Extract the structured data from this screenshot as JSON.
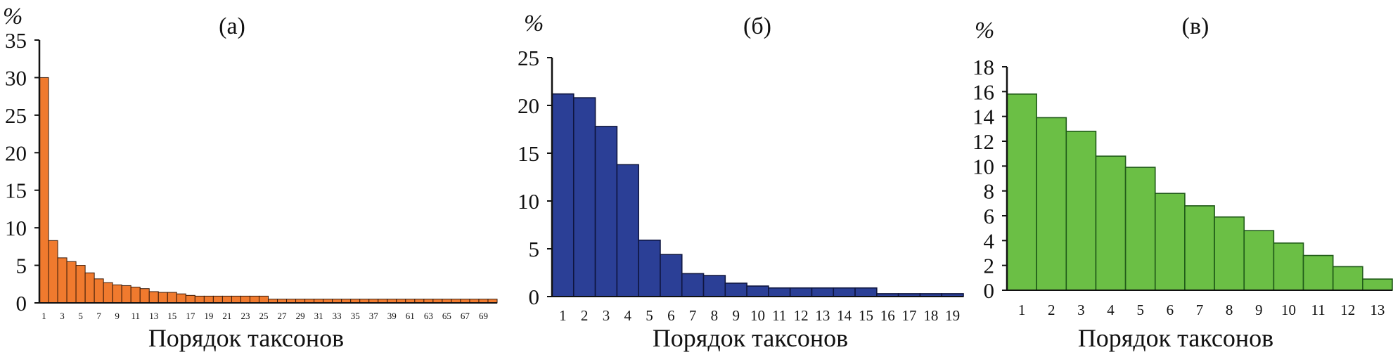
{
  "chart_data": [
    {
      "type": "bar",
      "panel_label": "(а)",
      "y_unit": "%",
      "xlabel": "Порядок таксонов",
      "ylim": [
        0,
        35
      ],
      "yticks": [
        0,
        5,
        10,
        15,
        20,
        25,
        30,
        35
      ],
      "categories": [
        "1",
        "2",
        "3",
        "4",
        "5",
        "6",
        "7",
        "8",
        "9",
        "10",
        "11",
        "12",
        "13",
        "14",
        "15",
        "16",
        "17",
        "18",
        "19",
        "20",
        "21",
        "22",
        "23",
        "24",
        "25",
        "26",
        "27",
        "28",
        "29",
        "30",
        "31",
        "32",
        "33",
        "34",
        "35",
        "36",
        "37",
        "38",
        "39",
        "40",
        "61",
        "62",
        "63",
        "64",
        "65",
        "66",
        "67",
        "68",
        "69",
        "70"
      ],
      "xtick_labels": [
        "1",
        "3",
        "5",
        "7",
        "9",
        "11",
        "13",
        "15",
        "17",
        "19",
        "21",
        "23",
        "25",
        "27",
        "29",
        "31",
        "33",
        "35",
        "37",
        "39",
        "61",
        "63",
        "65",
        "67",
        "69"
      ],
      "values": [
        30,
        8.3,
        6,
        5.5,
        5,
        4,
        3.2,
        2.7,
        2.4,
        2.3,
        2.1,
        1.9,
        1.5,
        1.4,
        1.4,
        1.2,
        1.0,
        0.9,
        0.9,
        0.9,
        0.9,
        0.9,
        0.9,
        0.9,
        0.9,
        0.5,
        0.5,
        0.5,
        0.5,
        0.5,
        0.5,
        0.5,
        0.5,
        0.5,
        0.5,
        0.5,
        0.5,
        0.5,
        0.5,
        0.5,
        0.5,
        0.5,
        0.5,
        0.5,
        0.5,
        0.5,
        0.5,
        0.5,
        0.5,
        0.5
      ],
      "color": "#f07a2e",
      "grid": false
    },
    {
      "type": "bar",
      "panel_label": "(б)",
      "y_unit": "%",
      "xlabel": "Порядок таксонов",
      "ylim": [
        0,
        25
      ],
      "yticks": [
        0,
        5,
        10,
        15,
        20,
        25
      ],
      "categories": [
        "1",
        "2",
        "3",
        "4",
        "5",
        "6",
        "7",
        "8",
        "9",
        "10",
        "11",
        "12",
        "13",
        "14",
        "15",
        "16",
        "17",
        "18",
        "19"
      ],
      "xtick_labels": [
        "1",
        "2",
        "3",
        "4",
        "5",
        "6",
        "7",
        "8",
        "9",
        "10",
        "11",
        "12",
        "13",
        "14",
        "15",
        "16",
        "17",
        "18",
        "19"
      ],
      "values": [
        21.2,
        20.8,
        17.8,
        13.8,
        5.9,
        4.4,
        2.4,
        2.2,
        1.4,
        1.1,
        0.9,
        0.9,
        0.9,
        0.9,
        0.9,
        0.3,
        0.3,
        0.3,
        0.3
      ],
      "color": "#2b3f96",
      "grid": false
    },
    {
      "type": "bar",
      "panel_label": "(в)",
      "y_unit": "%",
      "xlabel": "Порядок таксонов",
      "ylim": [
        0,
        18
      ],
      "yticks": [
        0,
        2,
        4,
        6,
        8,
        10,
        12,
        14,
        16,
        18
      ],
      "categories": [
        "1",
        "2",
        "3",
        "4",
        "5",
        "6",
        "7",
        "8",
        "9",
        "10",
        "11",
        "12",
        "13"
      ],
      "xtick_labels": [
        "1",
        "2",
        "3",
        "4",
        "5",
        "6",
        "7",
        "8",
        "9",
        "10",
        "11",
        "12",
        "13"
      ],
      "values": [
        15.8,
        13.9,
        12.8,
        10.8,
        9.9,
        7.8,
        6.8,
        5.9,
        4.8,
        3.8,
        2.8,
        1.9,
        0.9
      ],
      "color": "#6bbf45",
      "grid": false
    }
  ]
}
